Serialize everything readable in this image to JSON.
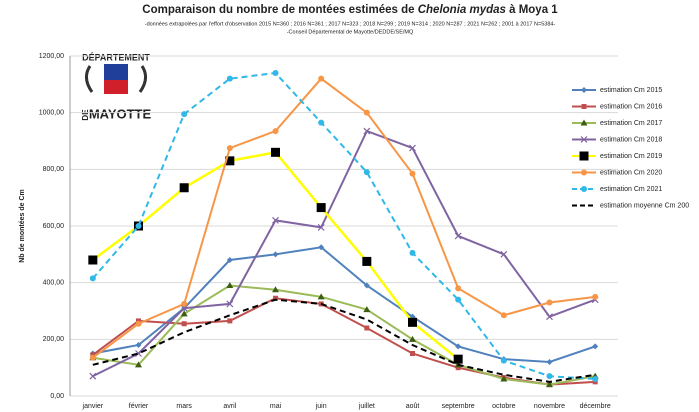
{
  "chart_data": {
    "type": "line",
    "title_start": "Comparaison du nombre de montées estimées de ",
    "title_italic": "Chelonia mydas",
    "title_end": " à Moya 1",
    "subtitle": [
      "-données extrapolées par l'effort d'observation 2015 N=360 ; 2016 N=361 ; 2017 N=323 ; 2018 N=299 ; 2019 N=314 ; 2020 N=287 ; 2021 N=262 ; 2001 à 2017 N=5384-",
      "-Conseil Départemental de Mayotte/DEDDE/SE/MQ"
    ],
    "y_label": "Nb de montées de Cm",
    "logo": [
      "DÉPARTEMENT",
      "DE",
      "MAYOTTE"
    ],
    "categories": [
      "janvier",
      "février",
      "mars",
      "avril",
      "mai",
      "juin",
      "juillet",
      "août",
      "septembre",
      "octobre",
      "novembre",
      "décembre"
    ],
    "ylim": [
      0,
      1200
    ],
    "yticks": [
      {
        "value": 0,
        "label": "0,00"
      },
      {
        "value": 200,
        "label": "200,00"
      },
      {
        "value": 400,
        "label": "400,00"
      },
      {
        "value": 600,
        "label": "600,00"
      },
      {
        "value": 800,
        "label": "800,00"
      },
      {
        "value": 1000,
        "label": "1000,00"
      },
      {
        "value": 1200,
        "label": "1200,00"
      }
    ],
    "grid": true,
    "legend": "right",
    "series": [
      {
        "name": "estimation Cm 2015",
        "color": "#4f81bd",
        "marker": "diamond",
        "dash": false,
        "values": [
          150,
          180,
          310,
          480,
          500,
          525,
          390,
          280,
          175,
          130,
          120,
          175
        ]
      },
      {
        "name": "estimation Cm 2016",
        "color": "#c0504d",
        "marker": "square",
        "dash": false,
        "values": [
          145,
          265,
          255,
          265,
          345,
          325,
          240,
          150,
          100,
          65,
          40,
          50
        ]
      },
      {
        "name": "estimation Cm 2017",
        "color": "#9bbb59",
        "marker": "triangle",
        "dash": false,
        "values": [
          135,
          110,
          290,
          390,
          375,
          350,
          305,
          200,
          110,
          60,
          40,
          70
        ]
      },
      {
        "name": "estimation Cm 2018",
        "color": "#8064a2",
        "marker": "cross",
        "dash": false,
        "values": [
          70,
          150,
          310,
          325,
          620,
          595,
          935,
          875,
          565,
          500,
          280,
          340
        ]
      },
      {
        "name": "estimation Cm 2019",
        "color": "#ffff00",
        "marker": "bigsquare",
        "dash": false,
        "values": [
          480,
          600,
          735,
          830,
          860,
          665,
          475,
          260,
          130,
          null,
          null,
          null
        ]
      },
      {
        "name": "estimation Cm 2020",
        "color": "#f79646",
        "marker": "circle",
        "dash": false,
        "values": [
          135,
          255,
          325,
          875,
          935,
          1120,
          1000,
          785,
          380,
          285,
          330,
          350
        ]
      },
      {
        "name": "estimation Cm 2021",
        "color": "#2fb8e8",
        "marker": "circle",
        "dash": true,
        "values": [
          415,
          600,
          995,
          1120,
          1140,
          965,
          790,
          505,
          340,
          125,
          70,
          60
        ]
      },
      {
        "name": "estimation moyenne Cm 200",
        "color": "#000000",
        "marker": "none",
        "dash": true,
        "values": [
          110,
          150,
          225,
          285,
          340,
          325,
          270,
          180,
          110,
          75,
          50,
          75
        ]
      }
    ]
  }
}
